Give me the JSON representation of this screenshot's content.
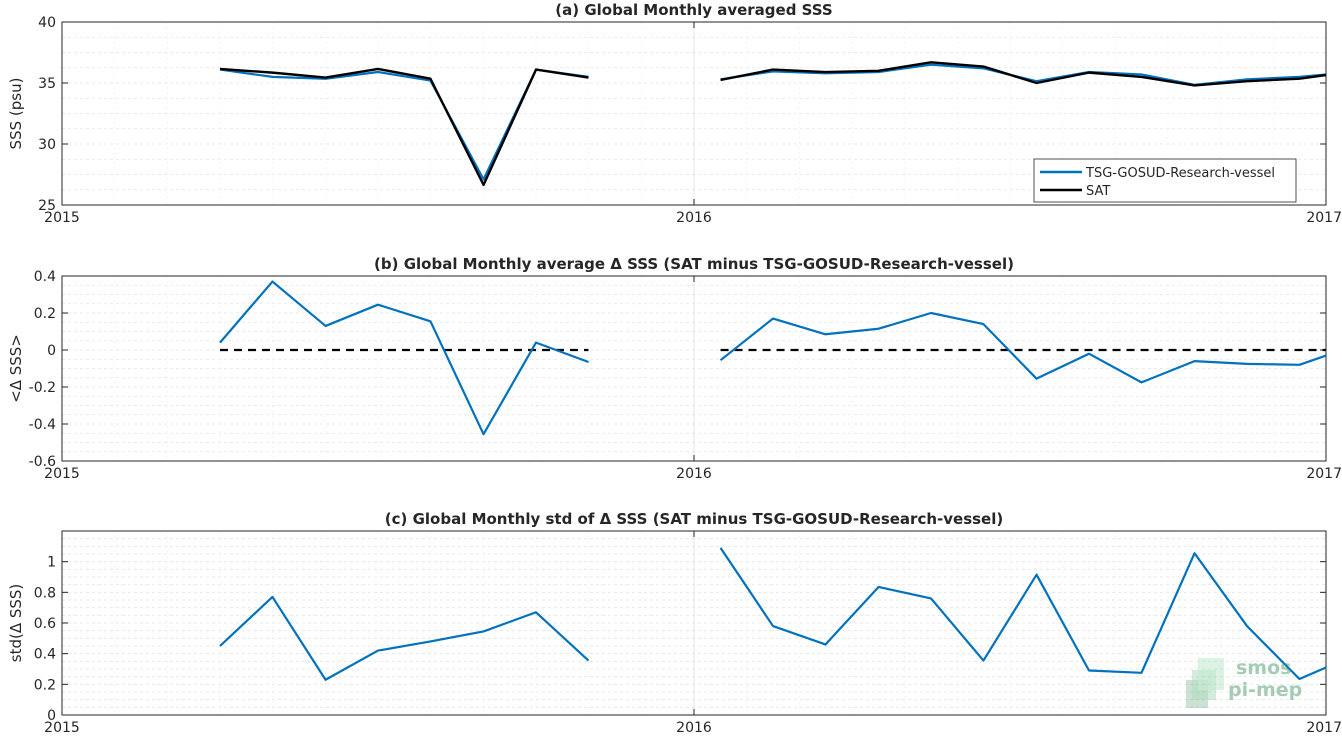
{
  "logo": {
    "line1": "smos",
    "line2": "pi-mep"
  },
  "colors": {
    "tsg": "#0072BD",
    "sat": "#000000",
    "zero_line": "#000000",
    "grid": "#d9d9d9"
  },
  "chart_data": [
    {
      "type": "line",
      "title": "(a) Global Monthly averaged SSS",
      "xlabel": "",
      "ylabel": "SSS (psu)",
      "xlim": [
        2015.0,
        2017.0
      ],
      "xticks": [
        2015,
        2016,
        2017
      ],
      "xtick_labels": [
        "2015",
        "2016",
        "2017"
      ],
      "ylim": [
        25,
        40
      ],
      "yticks": [
        25,
        30,
        35,
        40
      ],
      "ytick_labels": [
        "25",
        "30",
        "35",
        "40"
      ],
      "grid": "minor-dashed",
      "legend": "bottom-right",
      "series": [
        {
          "name": "TSG-GOSUD-Research-vessel",
          "color": "#0072BD",
          "segments": [
            {
              "x": [
                2015.25,
                2015.333,
                2015.417,
                2015.5,
                2015.583,
                2015.667,
                2015.75,
                2015.833
              ],
              "y": [
                36.1,
                35.5,
                35.35,
                35.9,
                35.2,
                27.1,
                36.1,
                35.5
              ]
            },
            {
              "x": [
                2016.042,
                2016.125,
                2016.208,
                2016.292,
                2016.375,
                2016.458,
                2016.542,
                2016.625,
                2016.708,
                2016.792,
                2016.875,
                2016.958,
                2017.0
              ],
              "y": [
                35.3,
                35.95,
                35.8,
                35.9,
                36.5,
                36.2,
                35.15,
                35.9,
                35.7,
                34.85,
                35.3,
                35.5,
                35.7
              ]
            }
          ]
        },
        {
          "name": "SAT",
          "color": "#000000",
          "segments": [
            {
              "x": [
                2015.25,
                2015.333,
                2015.417,
                2015.5,
                2015.583,
                2015.667,
                2015.75,
                2015.833
              ],
              "y": [
                36.15,
                35.85,
                35.45,
                36.15,
                35.35,
                26.65,
                36.1,
                35.45
              ]
            },
            {
              "x": [
                2016.042,
                2016.125,
                2016.208,
                2016.292,
                2016.375,
                2016.458,
                2016.542,
                2016.625,
                2016.708,
                2016.792,
                2016.875,
                2016.958,
                2017.0
              ],
              "y": [
                35.25,
                36.1,
                35.9,
                36.0,
                36.7,
                36.35,
                35.0,
                35.85,
                35.5,
                34.8,
                35.15,
                35.35,
                35.65
              ]
            }
          ]
        }
      ]
    },
    {
      "type": "line",
      "title": "(b) Global Monthly average Δ SSS (SAT minus TSG-GOSUD-Research-vessel)",
      "xlabel": "",
      "ylabel": "<Δ SSS>",
      "xlim": [
        2015.0,
        2017.0
      ],
      "xticks": [
        2015,
        2016,
        2017
      ],
      "xtick_labels": [
        "2015",
        "2016",
        "2017"
      ],
      "ylim": [
        -0.6,
        0.4
      ],
      "yticks": [
        -0.6,
        -0.4,
        -0.2,
        0,
        0.2,
        0.4
      ],
      "ytick_labels": [
        "-0.6",
        "-0.4",
        "-0.2",
        "0",
        "0.2",
        "0.4"
      ],
      "grid": "minor-dashed",
      "reference_line": {
        "y": 0,
        "segments": [
          [
            2015.25,
            2015.833
          ],
          [
            2016.042,
            2017.0
          ]
        ]
      },
      "series": [
        {
          "color": "#0072BD",
          "segments": [
            {
              "x": [
                2015.25,
                2015.333,
                2015.417,
                2015.5,
                2015.583,
                2015.667,
                2015.75,
                2015.833
              ],
              "y": [
                0.04,
                0.37,
                0.13,
                0.245,
                0.155,
                -0.455,
                0.04,
                -0.065
              ]
            },
            {
              "x": [
                2016.042,
                2016.125,
                2016.208,
                2016.292,
                2016.375,
                2016.458,
                2016.542,
                2016.625,
                2016.708,
                2016.792,
                2016.875,
                2016.958,
                2017.0
              ],
              "y": [
                -0.055,
                0.17,
                0.085,
                0.115,
                0.2,
                0.14,
                -0.155,
                -0.02,
                -0.175,
                -0.06,
                -0.075,
                -0.08,
                -0.03
              ]
            }
          ]
        }
      ]
    },
    {
      "type": "line",
      "title": "(c) Global Monthly std of Δ SSS (SAT minus TSG-GOSUD-Research-vessel)",
      "xlabel": "",
      "ylabel": "std(Δ SSS)",
      "xlim": [
        2015.0,
        2017.0
      ],
      "xticks": [
        2015,
        2016,
        2017
      ],
      "xtick_labels": [
        "2015",
        "2016",
        "2017"
      ],
      "ylim": [
        0,
        1.2
      ],
      "yticks": [
        0,
        0.2,
        0.4,
        0.6,
        0.8,
        1
      ],
      "ytick_labels": [
        "0",
        "0.2",
        "0.4",
        "0.6",
        "0.8",
        "1"
      ],
      "grid": "minor-dashed",
      "series": [
        {
          "color": "#0072BD",
          "segments": [
            {
              "x": [
                2015.25,
                2015.333,
                2015.417,
                2015.5,
                2015.583,
                2015.667,
                2015.75,
                2015.833
              ],
              "y": [
                0.45,
                0.77,
                0.23,
                0.42,
                0.48,
                0.545,
                0.67,
                0.355
              ]
            },
            {
              "x": [
                2016.042,
                2016.125,
                2016.208,
                2016.292,
                2016.375,
                2016.458,
                2016.542,
                2016.625,
                2016.708,
                2016.792,
                2016.875,
                2016.958,
                2017.0
              ],
              "y": [
                1.09,
                0.58,
                0.46,
                0.835,
                0.76,
                0.355,
                0.915,
                0.29,
                0.275,
                1.055,
                0.58,
                0.235,
                0.31
              ]
            }
          ]
        }
      ]
    }
  ]
}
